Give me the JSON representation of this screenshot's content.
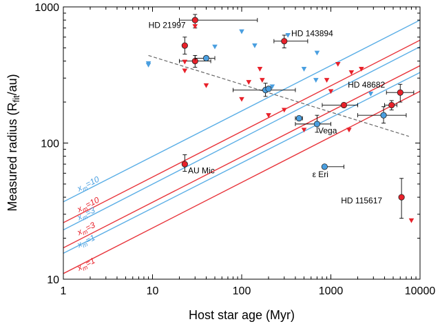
{
  "chart_data": {
    "type": "scatter",
    "x_scale": "log",
    "y_scale": "log",
    "xlim": [
      1,
      10000
    ],
    "ylim": [
      10,
      1000
    ],
    "xlabel": "Host star age (Myr)",
    "ylabel": "Measured radius (R_fit/au)",
    "ylabel_parts": {
      "pre": "Measured radius (R",
      "sub": "fit",
      "post": "/au)"
    },
    "x_ticks": [
      {
        "v": 1,
        "label": "1"
      },
      {
        "v": 10,
        "label": "10"
      },
      {
        "v": 100,
        "label": "100"
      },
      {
        "v": 1000,
        "label": "1000"
      },
      {
        "v": 10000,
        "label": "10000"
      }
    ],
    "y_ticks": [
      {
        "v": 10,
        "label": "10"
      },
      {
        "v": 100,
        "label": "100"
      },
      {
        "v": 1000,
        "label": "1000"
      }
    ],
    "colors": {
      "red": "#e8212a",
      "blue": "#4a9fe0",
      "red_line": "#e8333a",
      "blue_line": "#5aaee6",
      "dashed": "#666666"
    },
    "model_lines": [
      {
        "color": "blue",
        "x": [
          1,
          10000
        ],
        "y": [
          37,
          800
        ],
        "label": "x_m=10",
        "label_sub": "m",
        "label_pre": "x",
        "label_post": "=10",
        "label_at": [
          1.5,
          44
        ]
      },
      {
        "color": "red",
        "x": [
          1,
          10000
        ],
        "y": [
          26,
          570
        ],
        "label": "x_m=10",
        "label_sub": "m",
        "label_pre": "x",
        "label_post": "=10",
        "label_at": [
          1.5,
          31
        ]
      },
      {
        "color": "blue",
        "x": [
          1,
          10000
        ],
        "y": [
          23,
          510
        ],
        "label": "x_m=3",
        "label_sub": "m",
        "label_pre": "x",
        "label_post": "=3",
        "label_at": [
          1.5,
          27
        ]
      },
      {
        "color": "red",
        "x": [
          1,
          10000
        ],
        "y": [
          17,
          370
        ],
        "label": "x_m=3",
        "label_sub": "m",
        "label_pre": "x",
        "label_post": "=3",
        "label_at": [
          1.5,
          21
        ]
      },
      {
        "color": "blue",
        "x": [
          1,
          10000
        ],
        "y": [
          15.5,
          330
        ],
        "label": "x_m=1",
        "label_sub": "m",
        "label_pre": "x",
        "label_post": "=1",
        "label_at": [
          1.5,
          17
        ]
      },
      {
        "color": "red",
        "x": [
          1,
          10000
        ],
        "y": [
          11,
          240
        ],
        "label": "x_m=1",
        "label_sub": "m",
        "label_pre": "x",
        "label_post": "=1",
        "label_at": [
          1.5,
          11.5
        ]
      }
    ],
    "dashed_line": {
      "x": [
        9,
        7500
      ],
      "y": [
        440,
        112
      ]
    },
    "points": [
      {
        "color": "red",
        "x": 30,
        "y": 800,
        "xerr": [
          20,
          150
        ],
        "yerr": [
          700,
          880
        ]
      },
      {
        "color": "red",
        "x": 23,
        "y": 520,
        "xerr": null,
        "yerr": [
          450,
          600
        ]
      },
      {
        "color": "red",
        "x": 30,
        "y": 400,
        "xerr": [
          20,
          45
        ],
        "yerr": [
          360,
          440
        ]
      },
      {
        "color": "red",
        "x": 300,
        "y": 560,
        "xerr": [
          230,
          550
        ],
        "yerr": [
          500,
          620
        ]
      },
      {
        "color": "red",
        "x": 1400,
        "y": 190,
        "xerr": [
          800,
          2000
        ],
        "yerr": null
      },
      {
        "color": "red",
        "x": 4800,
        "y": 190,
        "xerr": [
          4000,
          5500
        ],
        "yerr": [
          175,
          205
        ]
      },
      {
        "color": "red",
        "x": 6000,
        "y": 235,
        "xerr": [
          4200,
          8500
        ],
        "yerr": [
          200,
          270
        ]
      },
      {
        "color": "red",
        "x": 23,
        "y": 70,
        "xerr": null,
        "yerr": [
          62,
          82
        ]
      },
      {
        "color": "red",
        "x": 6200,
        "y": 40,
        "xerr": null,
        "yerr": [
          28,
          55
        ]
      },
      {
        "color": "blue",
        "x": 40,
        "y": 420,
        "xerr": [
          30,
          50
        ],
        "yerr": null
      },
      {
        "color": "blue",
        "x": 185,
        "y": 245,
        "xerr": [
          80,
          400
        ],
        "yerr": [
          220,
          275
        ]
      },
      {
        "color": "blue",
        "x": 200,
        "y": 250,
        "xerr": null,
        "yerr": null
      },
      {
        "color": "blue",
        "x": 440,
        "y": 152,
        "xerr": [
          400,
          480
        ],
        "yerr": null
      },
      {
        "color": "blue",
        "x": 700,
        "y": 138,
        "xerr": [
          400,
          1000
        ],
        "yerr": [
          120,
          160
        ]
      },
      {
        "color": "blue",
        "x": 3900,
        "y": 160,
        "xerr": [
          2000,
          7000
        ],
        "yerr": [
          140,
          185
        ]
      },
      {
        "color": "blue",
        "x": 850,
        "y": 67,
        "xerr": [
          850,
          1400
        ],
        "yerr": null
      }
    ],
    "upper_limits": [
      {
        "color": "red",
        "x": 30,
        "y": 720
      },
      {
        "color": "red",
        "x": 23,
        "y": 395
      },
      {
        "color": "red",
        "x": 23,
        "y": 340
      },
      {
        "color": "red",
        "x": 40,
        "y": 265
      },
      {
        "color": "red",
        "x": 100,
        "y": 210
      },
      {
        "color": "red",
        "x": 120,
        "y": 280
      },
      {
        "color": "red",
        "x": 160,
        "y": 350
      },
      {
        "color": "red",
        "x": 170,
        "y": 290
      },
      {
        "color": "red",
        "x": 200,
        "y": 160
      },
      {
        "color": "red",
        "x": 300,
        "y": 175
      },
      {
        "color": "red",
        "x": 500,
        "y": 125
      },
      {
        "color": "red",
        "x": 900,
        "y": 290
      },
      {
        "color": "red",
        "x": 1000,
        "y": 240
      },
      {
        "color": "red",
        "x": 1200,
        "y": 380
      },
      {
        "color": "red",
        "x": 1600,
        "y": 125
      },
      {
        "color": "red",
        "x": 1700,
        "y": 330
      },
      {
        "color": "red",
        "x": 2200,
        "y": 350
      },
      {
        "color": "red",
        "x": 8000,
        "y": 27
      },
      {
        "color": "blue",
        "x": 9,
        "y": 385
      },
      {
        "color": "blue",
        "x": 9,
        "y": 375
      },
      {
        "color": "blue",
        "x": 50,
        "y": 510
      },
      {
        "color": "blue",
        "x": 100,
        "y": 660
      },
      {
        "color": "blue",
        "x": 140,
        "y": 520
      },
      {
        "color": "blue",
        "x": 220,
        "y": 260
      },
      {
        "color": "blue",
        "x": 330,
        "y": 620
      },
      {
        "color": "blue",
        "x": 500,
        "y": 350
      },
      {
        "color": "blue",
        "x": 700,
        "y": 460
      },
      {
        "color": "blue",
        "x": 680,
        "y": 290
      },
      {
        "color": "blue",
        "x": 2800,
        "y": 230
      }
    ],
    "annotations": [
      {
        "text": "HD 21997",
        "x": 9,
        "y": 700
      },
      {
        "text": "HD 143894",
        "x": 360,
        "y": 610
      },
      {
        "text": "HD 48682",
        "x": 1550,
        "y": 255
      },
      {
        "text": "Vega",
        "x": 720,
        "y": 118
      },
      {
        "text": "AU Mic",
        "x": 25,
        "y": 60
      },
      {
        "text": "ε Eri",
        "x": 620,
        "y": 56
      },
      {
        "text": "HD 115617",
        "x": 1300,
        "y": 36
      }
    ]
  }
}
